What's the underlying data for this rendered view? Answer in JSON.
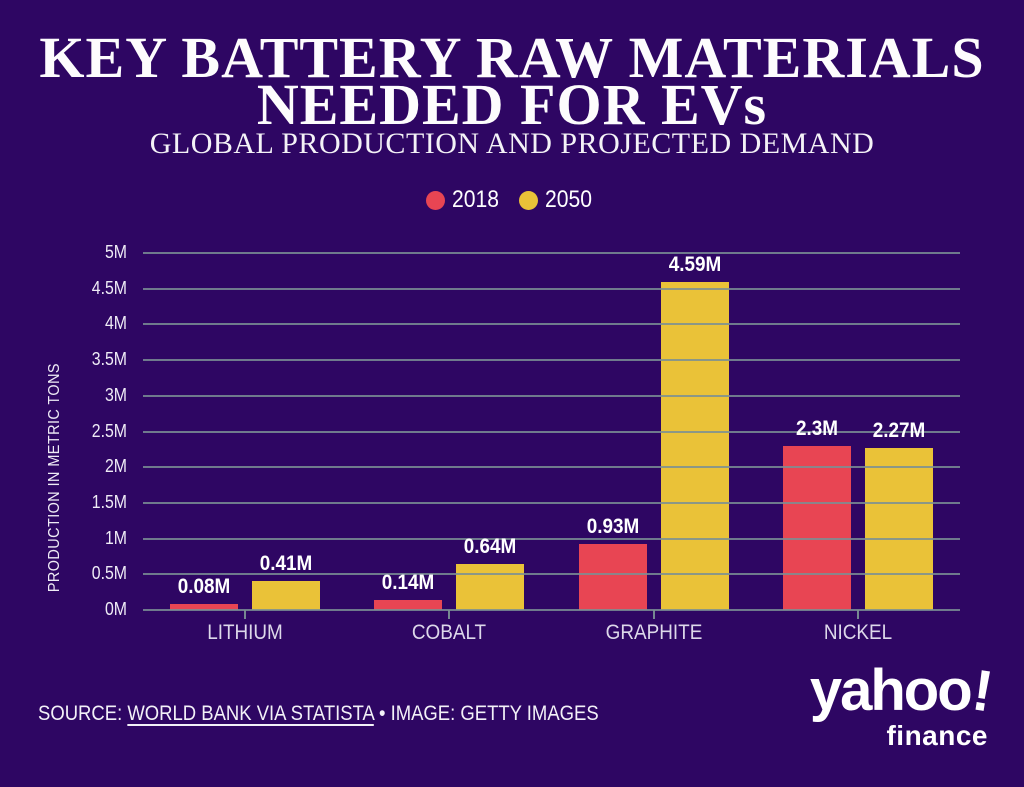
{
  "header": {
    "title_line1": "KEY BATTERY RAW MATERIALS",
    "title_line2": "NEEDED FOR EVs",
    "subtitle": "GLOBAL PRODUCTION AND PROJECTED DEMAND"
  },
  "chart_data": {
    "type": "bar",
    "categories": [
      "LITHIUM",
      "COBALT",
      "GRAPHITE",
      "NICKEL"
    ],
    "series": [
      {
        "name": "2018",
        "color": "#e84553",
        "values": [
          0.08,
          0.14,
          0.93,
          2.3
        ],
        "labels": [
          "0.08M",
          "0.14M",
          "0.93M",
          "2.3M"
        ]
      },
      {
        "name": "2050",
        "color": "#eac238",
        "values": [
          0.41,
          0.64,
          4.59,
          2.27
        ],
        "labels": [
          "0.41M",
          "0.64M",
          "4.59M",
          "2.27M"
        ]
      }
    ],
    "ylabel": "PRODUCTION IN METRIC TONS",
    "yticks": [
      "0M",
      "0.5M",
      "1M",
      "1.5M",
      "2M",
      "2.5M",
      "3M",
      "3.5M",
      "4M",
      "4.5M",
      "5M"
    ],
    "ylim": [
      0,
      5
    ],
    "grid": true,
    "gridlines_over_bars": true,
    "legend_position": "top"
  },
  "footer": {
    "source_prefix": "SOURCE:",
    "source_link": "WORLD BANK VIA STATISTA",
    "separator": "•",
    "image_credit": "IMAGE: GETTY IMAGES"
  },
  "logo": {
    "brand": "yahoo",
    "bang": "!",
    "sub": "finance"
  },
  "colors": {
    "background": "#2e0663",
    "grid": "#7a8f94",
    "text": "#ffffff",
    "bar_2018": "#e84553",
    "bar_2050": "#eac238"
  }
}
